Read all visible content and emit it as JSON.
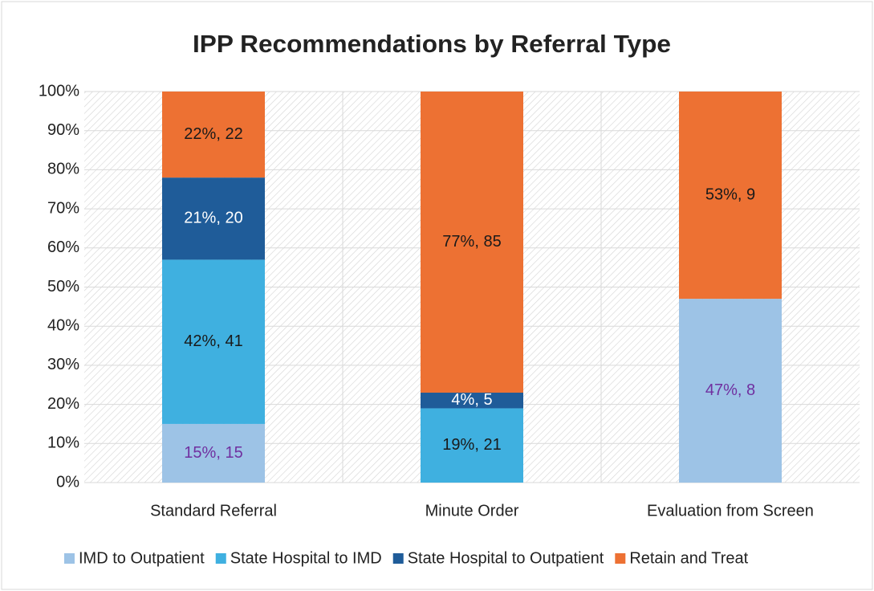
{
  "chart_data": {
    "type": "stacked_bar_percent",
    "title": "IPP Recommendations by Referral Type",
    "categories": [
      "Standard Referral",
      "Minute Order",
      "Evaluation from Screen"
    ],
    "series": [
      {
        "name": "IMD to Outpatient",
        "color": "#9dc3e6",
        "label_color": "#7030a0",
        "values": [
          15,
          null,
          47
        ],
        "value_labels": [
          "15%, 15",
          null,
          "47%, 8"
        ]
      },
      {
        "name": "State Hospital to IMD",
        "color": "#3fb0e0",
        "label_color": "#1a1a1a",
        "values": [
          42,
          19,
          null
        ],
        "value_labels": [
          "42%, 41",
          "19%, 21",
          null
        ]
      },
      {
        "name": "State Hospital to Outpatient",
        "color": "#1f5c99",
        "label_color": "#ffffff",
        "values": [
          21,
          4,
          null
        ],
        "value_labels": [
          "21%, 20",
          "4%, 5",
          null
        ]
      },
      {
        "name": "Retain and Treat",
        "color": "#ed7133",
        "label_color": "#1a1a1a",
        "values": [
          22,
          77,
          53
        ],
        "value_labels": [
          "22%, 22",
          "77%, 85",
          "53%, 9"
        ]
      }
    ],
    "ylim": [
      0,
      100
    ],
    "yticks": [
      {
        "value": 0,
        "label": "0%"
      },
      {
        "value": 10,
        "label": "10%"
      },
      {
        "value": 20,
        "label": "20%"
      },
      {
        "value": 30,
        "label": "30%"
      },
      {
        "value": 40,
        "label": "40%"
      },
      {
        "value": 50,
        "label": "50%"
      },
      {
        "value": 60,
        "label": "60%"
      },
      {
        "value": 70,
        "label": "70%"
      },
      {
        "value": 80,
        "label": "80%"
      },
      {
        "value": 90,
        "label": "90%"
      },
      {
        "value": 100,
        "label": "100%"
      }
    ],
    "grid": true,
    "legend": "bottom"
  }
}
